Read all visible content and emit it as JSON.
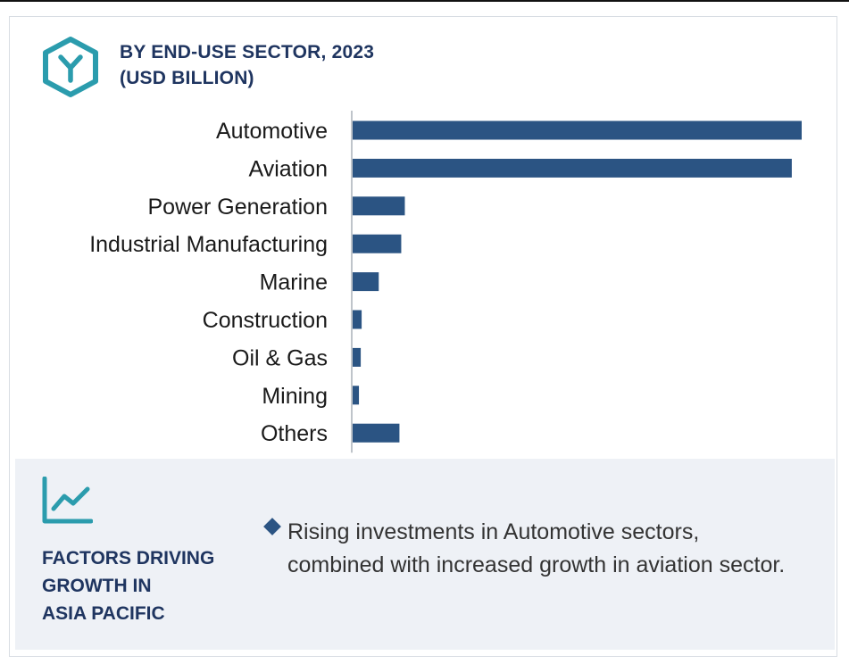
{
  "chart_data": {
    "type": "bar",
    "orientation": "horizontal",
    "title": "BY END-USE SECTOR, 2023",
    "subtitle": "(USD BILLION)",
    "categories": [
      "Automotive",
      "Aviation",
      "Power Generation",
      "Industrial Manufacturing",
      "Marine",
      "Construction",
      "Oil & Gas",
      "Mining",
      "Others"
    ],
    "values": [
      100,
      97.8,
      11.8,
      11.0,
      6.0,
      2.2,
      2.0,
      1.6,
      10.6
    ],
    "xlim": [
      0,
      100
    ],
    "xlabel": "",
    "ylabel": "",
    "grid": false,
    "legend": "none",
    "bar_color": "#2b5483"
  },
  "factors": {
    "title_lines": [
      "FACTORS DRIVING",
      "GROWTH IN",
      "ASIA PACIFIC"
    ],
    "bullets": [
      "Rising investments in Automotive sectors, combined with increased growth in aviation sector."
    ]
  },
  "colors": {
    "accent": "#2b9cad",
    "title": "#1f3560",
    "bar": "#2b5483",
    "panel": "#eef1f6"
  },
  "icons": {
    "header": "hexagon-y-icon",
    "factors": "line-chart-icon",
    "bullet": "diamond-icon"
  }
}
